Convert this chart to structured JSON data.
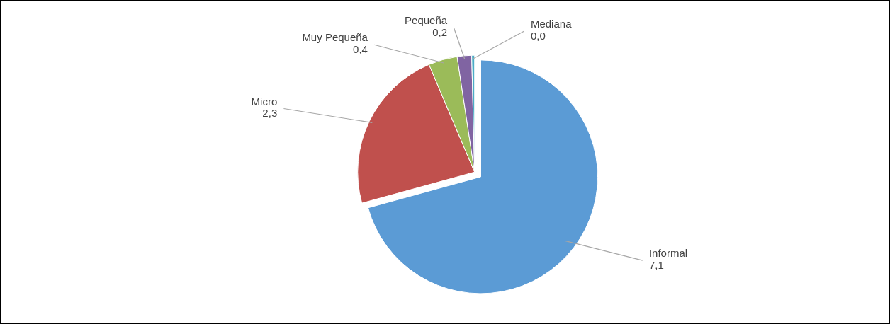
{
  "chart_data": {
    "type": "pie",
    "categories": [
      "Informal",
      "Micro",
      "Muy Pequeña",
      "Pequeña",
      "Mediana"
    ],
    "values": [
      7.1,
      2.3,
      0.4,
      0.2,
      0.04
    ],
    "value_labels": [
      "7,1",
      "2,3",
      "0,4",
      "0,2",
      "0,0"
    ],
    "colors": [
      "#5b9bd5",
      "#c0504d",
      "#9bbb59",
      "#8064a2",
      "#4bacc6"
    ],
    "legend": false
  }
}
